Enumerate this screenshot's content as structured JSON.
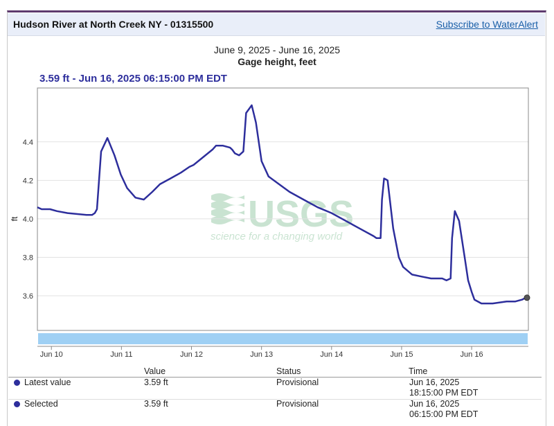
{
  "header": {
    "site_title": "Hudson River at North Creek NY - 01315500",
    "subscribe_label": "Subscribe to WaterAlert"
  },
  "watermark": {
    "logo_text": "USGS",
    "tagline": "science for a changing world"
  },
  "colors": {
    "series": "#2d2e9c",
    "navigator": "#9fd0f4",
    "header_bg": "#e9eef9",
    "link": "#1a5fa8"
  },
  "chart_data": {
    "type": "line",
    "title": "Gage height, feet",
    "subtitle": "June 9, 2025 - June 16, 2025",
    "readout": "3.59 ft - Jun 16, 2025 06:15:00 PM EDT",
    "ylabel": "ft",
    "ylim": [
      3.42,
      4.68
    ],
    "ytick_values": [
      3.6,
      3.8,
      4.0,
      4.2,
      4.4
    ],
    "ytick_labels": [
      "3.6",
      "3.8",
      "4.0",
      "4.2",
      "4.4"
    ],
    "xlim": [
      9.8,
      16.81
    ],
    "xtick_values": [
      10,
      11,
      12,
      13,
      14,
      15,
      16
    ],
    "xtick_labels": [
      "Jun 10",
      "Jun 11",
      "Jun 12",
      "Jun 13",
      "Jun 14",
      "Jun 15",
      "Jun 16"
    ],
    "grid": true,
    "series": [
      {
        "values_x": [
          9.8,
          9.86,
          9.98,
          10.08,
          10.23,
          10.5,
          10.58,
          10.62,
          10.65,
          10.71,
          10.8,
          10.9,
          10.99,
          11.08,
          11.2,
          11.32,
          11.44,
          11.55,
          11.7,
          11.85,
          11.97,
          12.03,
          12.3,
          12.35,
          12.45,
          12.55,
          12.58,
          12.62,
          12.68,
          12.74,
          12.78,
          12.86,
          12.92,
          13.0,
          13.1,
          13.25,
          13.4,
          13.6,
          13.8,
          14.0,
          14.2,
          14.4,
          14.6,
          14.64,
          14.7,
          14.72,
          14.75,
          14.8,
          14.88,
          14.96,
          15.02,
          15.15,
          15.28,
          15.42,
          15.58,
          15.64,
          15.7,
          15.72,
          15.76,
          15.82,
          15.9,
          15.95,
          16.0,
          16.04,
          16.14,
          16.3,
          16.5,
          16.62,
          16.72,
          16.77,
          16.79
        ],
        "values_y": [
          4.06,
          4.05,
          4.05,
          4.04,
          4.03,
          4.02,
          4.02,
          4.03,
          4.05,
          4.35,
          4.42,
          4.33,
          4.23,
          4.16,
          4.11,
          4.1,
          4.14,
          4.18,
          4.21,
          4.24,
          4.27,
          4.28,
          4.36,
          4.38,
          4.38,
          4.37,
          4.36,
          4.34,
          4.33,
          4.35,
          4.55,
          4.59,
          4.5,
          4.3,
          4.22,
          4.18,
          4.14,
          4.1,
          4.06,
          4.03,
          3.99,
          3.95,
          3.91,
          3.9,
          3.9,
          4.1,
          4.21,
          4.2,
          3.95,
          3.8,
          3.75,
          3.71,
          3.7,
          3.69,
          3.69,
          3.68,
          3.69,
          3.9,
          4.04,
          3.99,
          3.8,
          3.68,
          3.62,
          3.58,
          3.56,
          3.56,
          3.57,
          3.57,
          3.58,
          3.59,
          3.59
        ]
      }
    ]
  },
  "table": {
    "headers": {
      "value": "Value",
      "status": "Status",
      "time": "Time"
    },
    "rows": [
      {
        "label": "Latest value",
        "value": "3.59 ft",
        "status": "Provisional",
        "time_date": "Jun 16, 2025",
        "time_clock": "18:15:00 PM EDT"
      },
      {
        "label": "Selected",
        "value": "3.59 ft",
        "status": "Provisional",
        "time_date": "Jun 16, 2025",
        "time_clock": "06:15:00 PM EDT"
      }
    ]
  }
}
